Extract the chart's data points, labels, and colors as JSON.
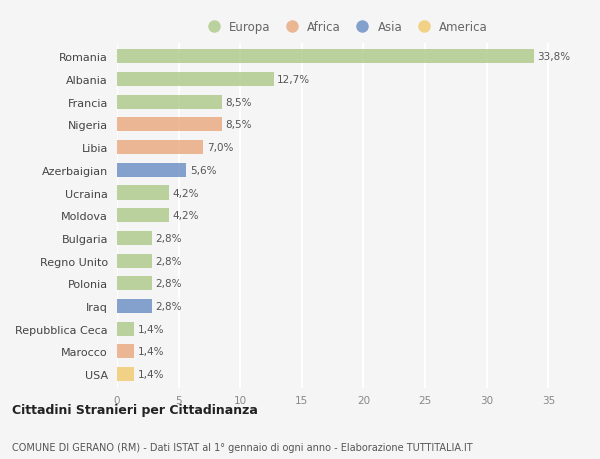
{
  "categories": [
    "Romania",
    "Albania",
    "Francia",
    "Nigeria",
    "Libia",
    "Azerbaigian",
    "Ucraina",
    "Moldova",
    "Bulgaria",
    "Regno Unito",
    "Polonia",
    "Iraq",
    "Repubblica Ceca",
    "Marocco",
    "USA"
  ],
  "values": [
    33.8,
    12.7,
    8.5,
    8.5,
    7.0,
    5.6,
    4.2,
    4.2,
    2.8,
    2.8,
    2.8,
    2.8,
    1.4,
    1.4,
    1.4
  ],
  "labels": [
    "33,8%",
    "12,7%",
    "8,5%",
    "8,5%",
    "7,0%",
    "5,6%",
    "4,2%",
    "4,2%",
    "2,8%",
    "2,8%",
    "2,8%",
    "2,8%",
    "1,4%",
    "1,4%",
    "1,4%"
  ],
  "continents": [
    "Europa",
    "Europa",
    "Europa",
    "Africa",
    "Africa",
    "Asia",
    "Europa",
    "Europa",
    "Europa",
    "Europa",
    "Europa",
    "Asia",
    "Europa",
    "Africa",
    "America"
  ],
  "colors": {
    "Europa": "#aec98a",
    "Africa": "#e8a97e",
    "Asia": "#6b8ec4",
    "America": "#f0c96e"
  },
  "legend_order": [
    "Europa",
    "Africa",
    "Asia",
    "America"
  ],
  "title": "Cittadini Stranieri per Cittadinanza",
  "subtitle": "COMUNE DI GERANO (RM) - Dati ISTAT al 1° gennaio di ogni anno - Elaborazione TUTTITALIA.IT",
  "xlim": [
    0,
    37
  ],
  "xticks": [
    0,
    5,
    10,
    15,
    20,
    25,
    30,
    35
  ],
  "background_color": "#f5f5f5",
  "bar_alpha": 0.82
}
